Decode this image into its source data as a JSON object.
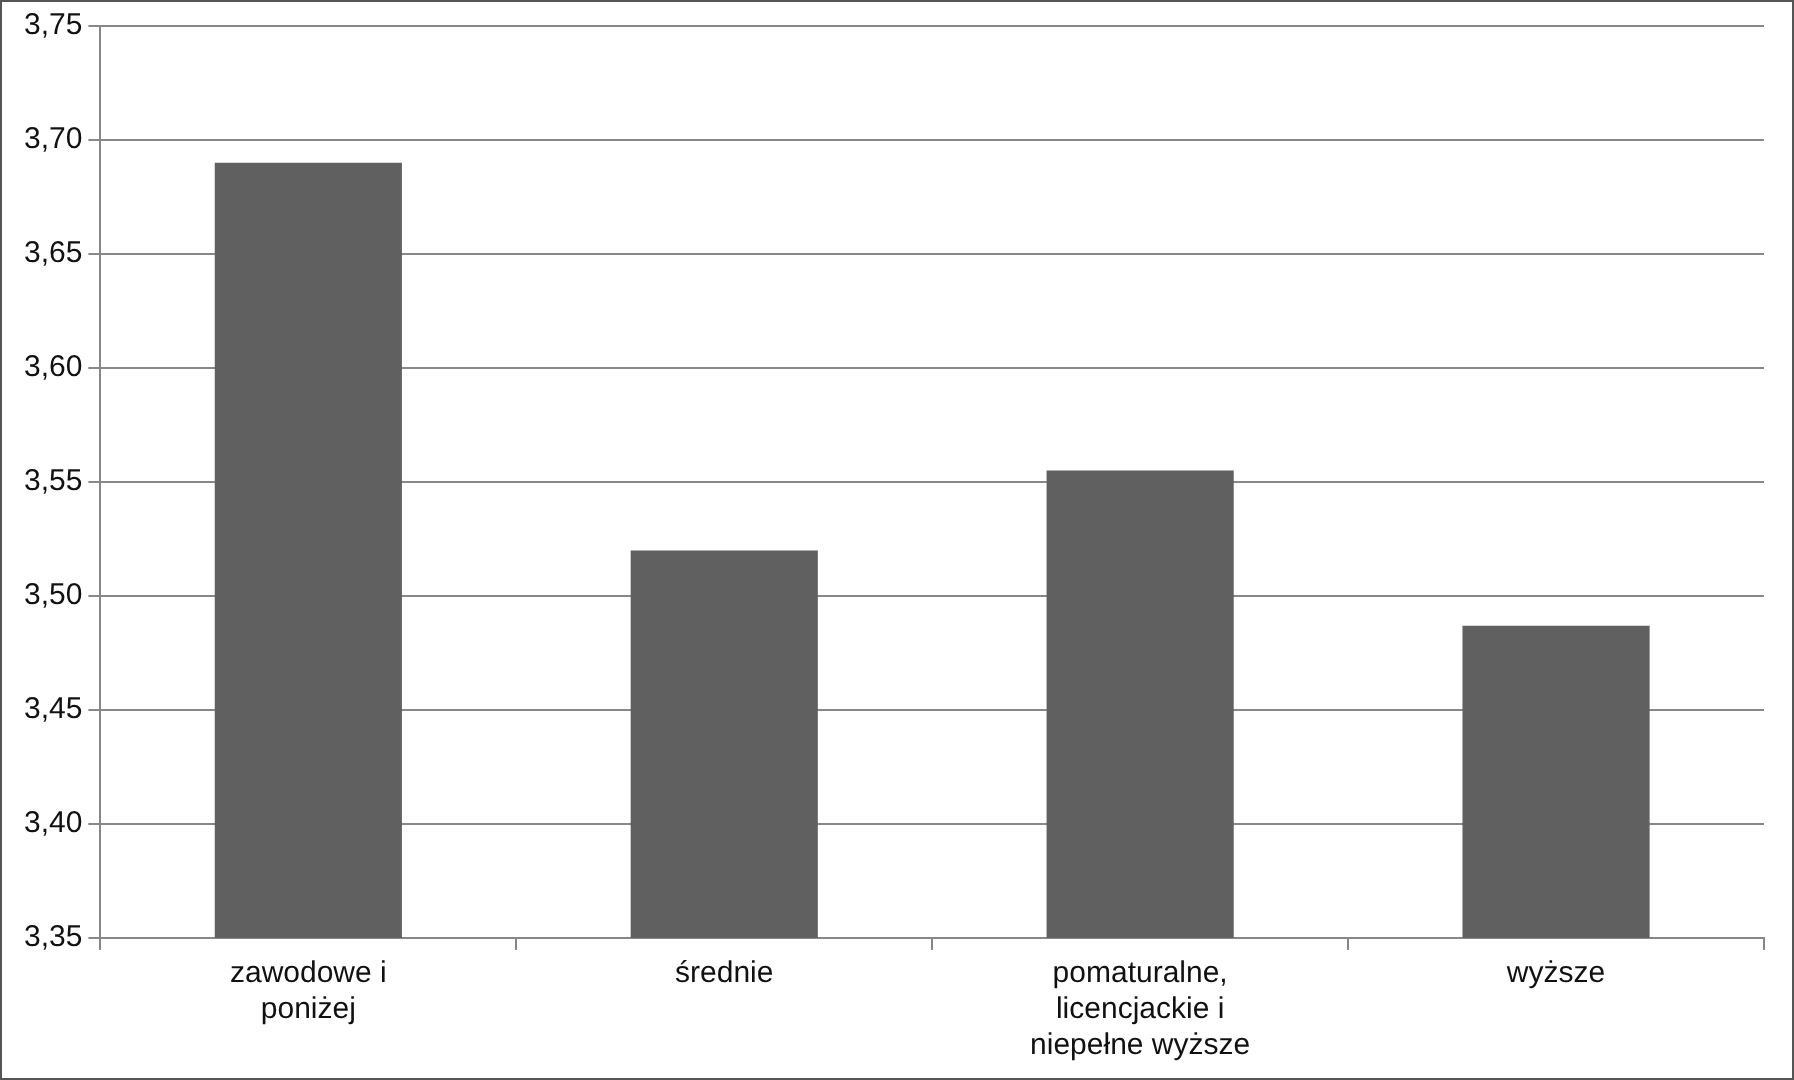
{
  "chart_data": {
    "type": "bar",
    "categories": [
      "zawodowe i poniżej",
      "średnie",
      "pomaturalne, licencjackie i niepełne wyższe",
      "wyższe"
    ],
    "values": [
      3.69,
      3.52,
      3.555,
      3.487
    ],
    "color": "#606060",
    "ylim": [
      3.35,
      3.75
    ],
    "yticks": [
      {
        "value": 3.35,
        "label": "3,35"
      },
      {
        "value": 3.4,
        "label": "3,40"
      },
      {
        "value": 3.45,
        "label": "3,45"
      },
      {
        "value": 3.5,
        "label": "3,50"
      },
      {
        "value": 3.55,
        "label": "3,55"
      },
      {
        "value": 3.6,
        "label": "3,60"
      },
      {
        "value": 3.65,
        "label": "3,65"
      },
      {
        "value": 3.7,
        "label": "3,70"
      },
      {
        "value": 3.75,
        "label": "3,75"
      }
    ],
    "grid": "y",
    "legend": false
  }
}
